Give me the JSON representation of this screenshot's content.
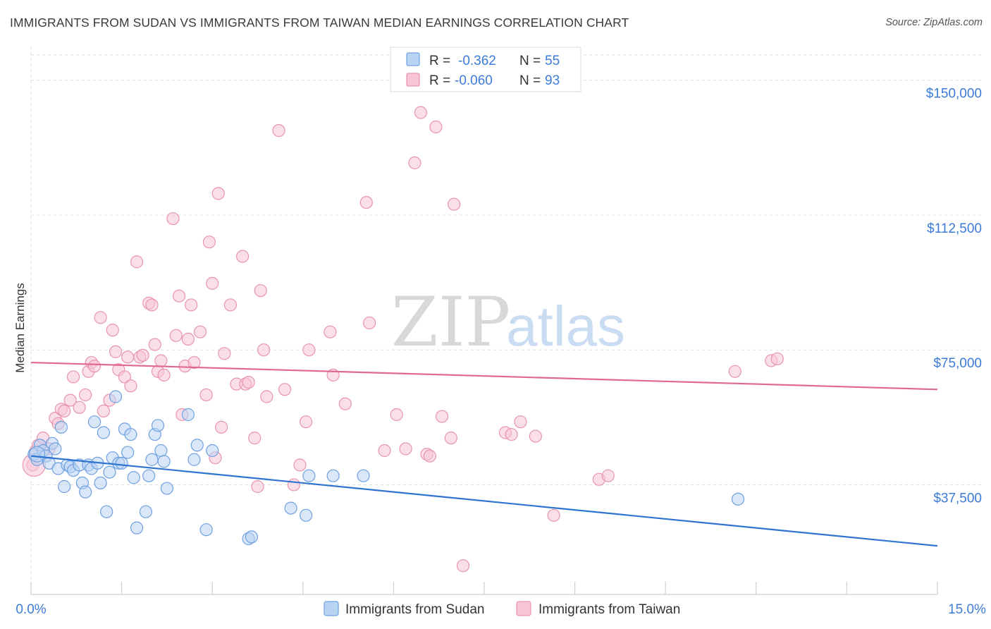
{
  "title": "IMMIGRANTS FROM SUDAN VS IMMIGRANTS FROM TAIWAN MEDIAN EARNINGS CORRELATION CHART",
  "source": "Source: ZipAtlas.com",
  "watermark": {
    "part1": "ZIP",
    "part2": "atlas"
  },
  "colors": {
    "sudan_fill": "#b9d3f2",
    "sudan_stroke": "#6fa1e0",
    "sudan_line": "#2f74d0",
    "taiwan_fill": "#f7c5d5",
    "taiwan_stroke": "#e894b0",
    "taiwan_line": "#e0698f",
    "tick_blue": "#3d7bd8",
    "grid": "#dcdcdc"
  },
  "legend": {
    "rows": [
      {
        "r_label": "R =",
        "r_value": "-0.362",
        "n_label": "N =",
        "n_value": "55"
      },
      {
        "r_label": "R =",
        "r_value": "-0.060",
        "n_label": "N =",
        "n_value": "93"
      }
    ]
  },
  "chart_data": {
    "type": "scatter",
    "ylabel": "Median Earnings",
    "xlim": [
      0,
      15
    ],
    "ylim": [
      7000,
      157000
    ],
    "x_tick_labels": [
      "0.0%",
      "15.0%"
    ],
    "y_ticks": [
      {
        "value": 150000,
        "label": "$150,000"
      },
      {
        "value": 112500,
        "label": "$112,500"
      },
      {
        "value": 75000,
        "label": "$75,000"
      },
      {
        "value": 37500,
        "label": "$37,500"
      }
    ],
    "grid": true,
    "legend_position": "top-center",
    "series": [
      {
        "name": "Immigrants from Sudan",
        "trend": {
          "x0": 0,
          "y0": 45500,
          "x1": 15,
          "y1": 20500
        },
        "points": [
          [
            0.05,
            46000
          ],
          [
            0.1,
            44500
          ],
          [
            0.15,
            48500
          ],
          [
            0.2,
            47000
          ],
          [
            0.25,
            45500
          ],
          [
            0.3,
            43500
          ],
          [
            0.35,
            49000
          ],
          [
            0.4,
            47500
          ],
          [
            0.45,
            42000
          ],
          [
            0.5,
            53500
          ],
          [
            0.55,
            37000
          ],
          [
            0.6,
            43000
          ],
          [
            0.65,
            42500
          ],
          [
            0.7,
            41500
          ],
          [
            0.8,
            43000
          ],
          [
            0.85,
            38000
          ],
          [
            0.9,
            35500
          ],
          [
            0.95,
            43000
          ],
          [
            1.0,
            42000
          ],
          [
            1.05,
            55000
          ],
          [
            1.1,
            43500
          ],
          [
            1.15,
            38000
          ],
          [
            1.2,
            52000
          ],
          [
            1.25,
            30000
          ],
          [
            1.3,
            41000
          ],
          [
            1.35,
            45000
          ],
          [
            1.4,
            62000
          ],
          [
            1.45,
            43500
          ],
          [
            1.5,
            43500
          ],
          [
            1.55,
            53000
          ],
          [
            1.6,
            46500
          ],
          [
            1.65,
            51500
          ],
          [
            1.7,
            39500
          ],
          [
            1.75,
            25500
          ],
          [
            1.9,
            30000
          ],
          [
            1.95,
            40000
          ],
          [
            2.0,
            44500
          ],
          [
            2.05,
            51500
          ],
          [
            2.1,
            54000
          ],
          [
            2.15,
            47000
          ],
          [
            2.2,
            44000
          ],
          [
            2.25,
            36500
          ],
          [
            2.6,
            57000
          ],
          [
            2.7,
            44500
          ],
          [
            2.75,
            48500
          ],
          [
            2.9,
            25000
          ],
          [
            3.0,
            47000
          ],
          [
            3.6,
            22500
          ],
          [
            3.65,
            23000
          ],
          [
            4.3,
            31000
          ],
          [
            4.55,
            29000
          ],
          [
            4.6,
            40000
          ],
          [
            5.0,
            40000
          ],
          [
            5.5,
            40000
          ],
          [
            11.7,
            33500
          ]
        ]
      },
      {
        "name": "Immigrants from Taiwan",
        "trend": {
          "x0": 0,
          "y0": 71500,
          "x1": 15,
          "y1": 64000
        },
        "points": [
          [
            0.03,
            43000
          ],
          [
            0.08,
            47000
          ],
          [
            0.12,
            48500
          ],
          [
            0.2,
            50500
          ],
          [
            0.3,
            47500
          ],
          [
            0.4,
            56000
          ],
          [
            0.45,
            54500
          ],
          [
            0.5,
            58500
          ],
          [
            0.55,
            58000
          ],
          [
            0.65,
            61000
          ],
          [
            0.7,
            67500
          ],
          [
            0.8,
            59000
          ],
          [
            0.9,
            62500
          ],
          [
            0.95,
            69000
          ],
          [
            1.0,
            71500
          ],
          [
            1.05,
            70500
          ],
          [
            1.15,
            84000
          ],
          [
            1.2,
            58000
          ],
          [
            1.3,
            61000
          ],
          [
            1.35,
            80500
          ],
          [
            1.4,
            74500
          ],
          [
            1.45,
            69500
          ],
          [
            1.55,
            67500
          ],
          [
            1.6,
            73000
          ],
          [
            1.65,
            65000
          ],
          [
            1.75,
            99500
          ],
          [
            1.8,
            73000
          ],
          [
            1.85,
            73500
          ],
          [
            1.95,
            88000
          ],
          [
            2.0,
            87500
          ],
          [
            2.05,
            76500
          ],
          [
            2.1,
            69000
          ],
          [
            2.15,
            72000
          ],
          [
            2.2,
            68000
          ],
          [
            2.35,
            111500
          ],
          [
            2.4,
            79000
          ],
          [
            2.45,
            90000
          ],
          [
            2.5,
            57000
          ],
          [
            2.55,
            70500
          ],
          [
            2.6,
            78000
          ],
          [
            2.65,
            87500
          ],
          [
            2.7,
            71500
          ],
          [
            2.8,
            80000
          ],
          [
            2.9,
            62500
          ],
          [
            2.95,
            105000
          ],
          [
            3.0,
            93500
          ],
          [
            3.05,
            45000
          ],
          [
            3.1,
            118500
          ],
          [
            3.15,
            53500
          ],
          [
            3.2,
            74000
          ],
          [
            3.3,
            87500
          ],
          [
            3.4,
            65500
          ],
          [
            3.5,
            101000
          ],
          [
            3.55,
            65500
          ],
          [
            3.6,
            66000
          ],
          [
            3.7,
            50500
          ],
          [
            3.75,
            37000
          ],
          [
            3.8,
            91500
          ],
          [
            3.85,
            75000
          ],
          [
            3.9,
            62000
          ],
          [
            4.1,
            136000
          ],
          [
            4.2,
            64000
          ],
          [
            4.35,
            37500
          ],
          [
            4.45,
            43000
          ],
          [
            4.55,
            55000
          ],
          [
            4.6,
            75000
          ],
          [
            4.95,
            80000
          ],
          [
            5.0,
            68000
          ],
          [
            5.2,
            60000
          ],
          [
            5.55,
            116000
          ],
          [
            5.6,
            82500
          ],
          [
            5.85,
            47000
          ],
          [
            6.05,
            57000
          ],
          [
            6.2,
            47500
          ],
          [
            6.35,
            127000
          ],
          [
            6.45,
            141000
          ],
          [
            6.55,
            46000
          ],
          [
            6.6,
            45500
          ],
          [
            6.7,
            137000
          ],
          [
            6.8,
            56500
          ],
          [
            6.95,
            50500
          ],
          [
            7.0,
            115500
          ],
          [
            7.15,
            15000
          ],
          [
            7.85,
            52000
          ],
          [
            7.95,
            51500
          ],
          [
            8.1,
            55000
          ],
          [
            8.35,
            51000
          ],
          [
            8.65,
            29000
          ],
          [
            9.4,
            39000
          ],
          [
            9.55,
            40000
          ],
          [
            11.65,
            69000
          ],
          [
            12.25,
            72000
          ],
          [
            12.35,
            72500
          ]
        ]
      }
    ]
  }
}
